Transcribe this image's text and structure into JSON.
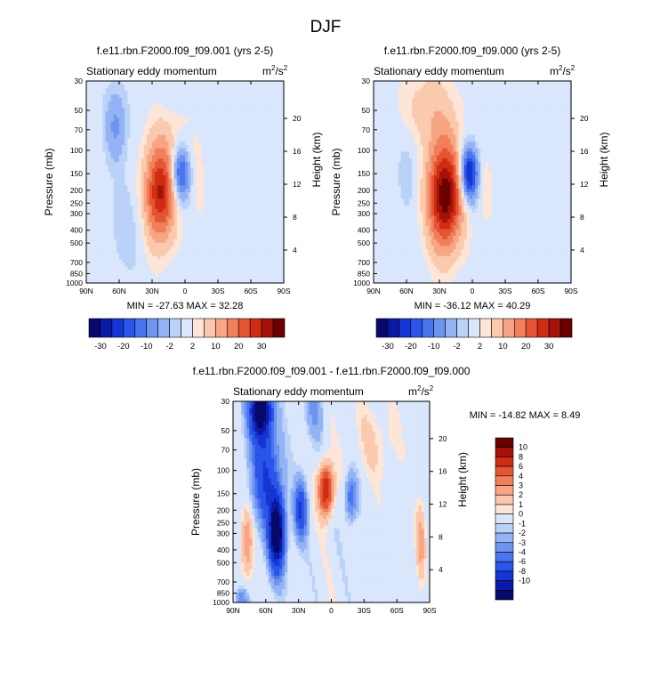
{
  "figure_title": "DJF",
  "chart_data": [
    {
      "type": "heatmap",
      "title": "f.e11.rbn.F2000.f09_f09.001 (yrs 2-5)",
      "subtitle_left": "Stationary eddy momentum",
      "units": "m²/s²",
      "units_base": "m",
      "units_exp_1": "2",
      "units_sep": "/s",
      "units_exp_2": "2",
      "ylabel": "Pressure (mb)",
      "ylabel_right": "Height (km)",
      "x_ticks": [
        "90N",
        "60N",
        "30N",
        "0",
        "30S",
        "60S",
        "90S"
      ],
      "x_range": [
        90,
        -90
      ],
      "y_ticks": [
        "30",
        "50",
        "70",
        "100",
        "150",
        "200",
        "250",
        "300",
        "400",
        "500",
        "700",
        "850",
        "1000"
      ],
      "y_range": [
        1000,
        30
      ],
      "y_scale": "log",
      "height_ticks": [
        "4",
        "8",
        "12",
        "16",
        "20"
      ],
      "stats": "MIN = -27.63  MAX = 32.28",
      "min": -27.63,
      "max": 32.28,
      "features": [
        {
          "lat": 63,
          "p": 65,
          "amp": -11,
          "slat": 7,
          "sp": 0.45
        },
        {
          "lat": 52,
          "p": 380,
          "amp": -4,
          "slat": 12,
          "sp": 0.6
        },
        {
          "lat": 23,
          "p": 210,
          "amp": 31,
          "slat": 10,
          "sp": 0.6
        },
        {
          "lat": 4,
          "p": 150,
          "amp": -24,
          "slat": 5.5,
          "sp": 0.32
        },
        {
          "lat": -12,
          "p": 180,
          "amp": 4,
          "slat": 4,
          "sp": 0.5
        },
        {
          "lat": -25,
          "p": 260,
          "amp": 3,
          "slat": 5,
          "sp": 0.6
        },
        {
          "lat": 10,
          "p": 80,
          "amp": 3,
          "slat": 15,
          "sp": 0.4
        },
        {
          "lat": -40,
          "p": 300,
          "amp": -1.5,
          "slat": 25,
          "sp": 1.2
        }
      ]
    },
    {
      "type": "heatmap",
      "title": "f.e11.rbn.F2000.f09_f09.000 (yrs 2-5)",
      "subtitle_left": "Stationary eddy momentum",
      "units": "m²/s²",
      "units_base": "m",
      "units_exp_1": "2",
      "units_sep": "/s",
      "units_exp_2": "2",
      "ylabel": "Pressure (mb)",
      "ylabel_right": "Height (km)",
      "x_ticks": [
        "90N",
        "60N",
        "30N",
        "0",
        "30S",
        "60S",
        "90S"
      ],
      "x_range": [
        90,
        -90
      ],
      "y_ticks": [
        "30",
        "50",
        "70",
        "100",
        "150",
        "200",
        "250",
        "300",
        "400",
        "500",
        "700",
        "850",
        "1000"
      ],
      "y_range": [
        1000,
        30
      ],
      "y_scale": "log",
      "height_ticks": [
        "4",
        "8",
        "12",
        "16",
        "20"
      ],
      "stats": "MIN = -36.12  MAX = 40.29",
      "min": -36.12,
      "max": 40.29,
      "features": [
        {
          "lat": 58,
          "p": 130,
          "amp": -4,
          "slat": 8,
          "sp": 0.6
        },
        {
          "lat": 25,
          "p": 220,
          "amp": 39,
          "slat": 11,
          "sp": 0.65
        },
        {
          "lat": 3,
          "p": 150,
          "amp": -34,
          "slat": 5.5,
          "sp": 0.32
        },
        {
          "lat": 40,
          "p": 50,
          "amp": 8,
          "slat": 18,
          "sp": 0.5
        },
        {
          "lat": -12,
          "p": 200,
          "amp": 4,
          "slat": 4,
          "sp": 0.5
        },
        {
          "lat": -25,
          "p": 300,
          "amp": 2.5,
          "slat": 6,
          "sp": 0.6
        },
        {
          "lat": -45,
          "p": 250,
          "amp": -1.5,
          "slat": 25,
          "sp": 1.2
        }
      ]
    },
    {
      "type": "heatmap",
      "title": "f.e11.rbn.F2000.f09_f09.001 - f.e11.rbn.F2000.f09_f09.000",
      "subtitle_left": "Stationary eddy momentum",
      "units": "m²/s²",
      "units_base": "m",
      "units_exp_1": "2",
      "units_sep": "/s",
      "units_exp_2": "2",
      "ylabel": "Pressure (mb)",
      "ylabel_right": "Height (km)",
      "x_ticks": [
        "90N",
        "60N",
        "30N",
        "0",
        "30S",
        "60S",
        "90S"
      ],
      "x_range": [
        90,
        -90
      ],
      "y_ticks": [
        "30",
        "50",
        "70",
        "100",
        "150",
        "200",
        "250",
        "300",
        "400",
        "500",
        "700",
        "850",
        "1000"
      ],
      "y_range": [
        1000,
        30
      ],
      "y_scale": "log",
      "height_ticks": [
        "4",
        "8",
        "12",
        "16",
        "20"
      ],
      "stats": "MIN = -14.82  MAX =   8.49",
      "min": -14.82,
      "max": 8.49,
      "features": [
        {
          "lat": 65,
          "p": 35,
          "amp": -12,
          "slat": 7,
          "sp": 0.35
        },
        {
          "lat": 60,
          "p": 110,
          "amp": -6,
          "slat": 9,
          "sp": 0.6
        },
        {
          "lat": 50,
          "p": 300,
          "amp": -13,
          "slat": 5,
          "sp": 0.45
        },
        {
          "lat": 28,
          "p": 200,
          "amp": -6,
          "slat": 4,
          "sp": 0.35
        },
        {
          "lat": 5,
          "p": 140,
          "amp": 8,
          "slat": 4.5,
          "sp": 0.3
        },
        {
          "lat": -18,
          "p": 160,
          "amp": -4,
          "slat": 4,
          "sp": 0.3
        },
        {
          "lat": 77,
          "p": 350,
          "amp": 3,
          "slat": 4,
          "sp": 0.45
        },
        {
          "lat": -82,
          "p": 350,
          "amp": 2.5,
          "slat": 3,
          "sp": 0.45
        },
        {
          "lat": 15,
          "p": 35,
          "amp": -2,
          "slat": 6,
          "sp": 0.35
        },
        {
          "lat": -40,
          "p": 60,
          "amp": 1,
          "slat": 15,
          "sp": 0.5
        },
        {
          "lat": 82,
          "p": 950,
          "amp": -3,
          "slat": 4,
          "sp": 0.15
        }
      ]
    }
  ],
  "colorbars": {
    "top": {
      "labels": [
        "-30",
        "-20",
        "-10",
        "-2",
        "2",
        "10",
        "20",
        "30"
      ],
      "levels": [
        -35,
        -30,
        -25,
        -20,
        -15,
        -10,
        -5,
        -2,
        2,
        5,
        10,
        15,
        20,
        25,
        30,
        35
      ],
      "colors": [
        "#08086b",
        "#0a1aa6",
        "#1535d4",
        "#2a55e8",
        "#4a75ee",
        "#6d95f0",
        "#94b3f4",
        "#bad1f8",
        "#d9e6fb",
        "#fde6d8",
        "#fbc9ad",
        "#f7a584",
        "#f07f5a",
        "#e65533",
        "#cf2c14",
        "#a4120a",
        "#6b0000"
      ]
    },
    "bottom": {
      "labels": [
        "10",
        "8",
        "6",
        "4",
        "3",
        "2",
        "1",
        "0",
        "-1",
        "-2",
        "-3",
        "-4",
        "-6",
        "-8",
        "-10"
      ],
      "levels": [
        -10,
        -8,
        -6,
        -4,
        -3,
        -2,
        -1,
        -0.5,
        0.5,
        1,
        2,
        3,
        4,
        6,
        8,
        10
      ],
      "colors": [
        "#08086b",
        "#0a1aa6",
        "#1535d4",
        "#2a55e8",
        "#4a75ee",
        "#6d95f0",
        "#94b3f4",
        "#bad1f8",
        "#d9e6fb",
        "#fde6d8",
        "#fbc9ad",
        "#f7a584",
        "#f07f5a",
        "#e65533",
        "#cf2c14",
        "#a4120a",
        "#6b0000"
      ]
    }
  }
}
